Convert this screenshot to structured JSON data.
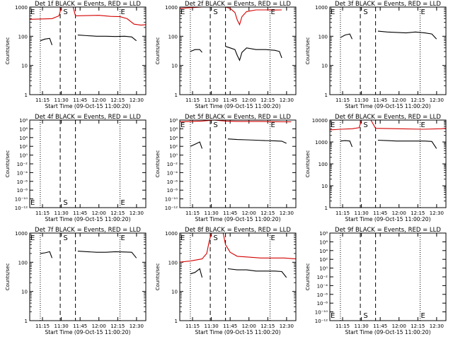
{
  "figure": {
    "background": "#ffffff",
    "foreground": "#000000",
    "events_color": "#000000",
    "lld_color": "#d40000",
    "line_styles": {
      "s_e_markers": "dotted",
      "gap_markers": "dashed"
    }
  },
  "chart_data": [
    {
      "type": "line",
      "title": "Det 1f BLACK = Events, RED = LLD",
      "xlabel": "Start Time (09-Oct-15 11:00:20)",
      "ylabel": "Counts/sec",
      "ylog": true,
      "ylim": [
        1,
        1000
      ],
      "ytick_labels": [
        "1",
        "10",
        "100",
        "1000"
      ],
      "xlim": [
        1,
        100
      ],
      "xtick_labels": [
        "11:15",
        "11:30",
        "11:45",
        "12:00",
        "12:15",
        "12:30"
      ],
      "markers": {
        "S": 32,
        "E": 78,
        "dotted_x": [
          10,
          78
        ],
        "dashed_x": [
          27,
          40
        ]
      },
      "series": [
        {
          "name": "Events",
          "color": "#000000",
          "segments": [
            {
              "x": [
                10,
                14,
                18,
                20
              ],
              "y": [
                70,
                80,
                85,
                50
              ]
            },
            {
              "x": [
                42,
                50,
                58,
                66,
                74,
                82,
                88,
                92
              ],
              "y": [
                110,
                105,
                100,
                100,
                98,
                100,
                95,
                70
              ]
            }
          ]
        },
        {
          "name": "LLD",
          "color": "#d40000",
          "segments": [
            {
              "x": [
                0,
                10,
                20,
                26,
                28,
                38,
                40,
                60,
                70,
                78,
                84,
                90,
                96,
                100
              ],
              "y": [
                380,
                390,
                400,
                500,
                1000,
                1000,
                500,
                520,
                480,
                470,
                400,
                260,
                240,
                250
              ]
            }
          ]
        }
      ]
    },
    {
      "type": "line",
      "title": "Det 2f BLACK = Events, RED = LLD",
      "xlabel": "Start Time (09-Oct-15 11:00:20)",
      "ylabel": "Counts/sec",
      "ylog": true,
      "ylim": [
        1,
        1000
      ],
      "ytick_labels": [
        "1",
        "10",
        "100",
        "1000"
      ],
      "xlim": [
        1,
        100
      ],
      "xtick_labels": [
        "11:15",
        "11:30",
        "11:45",
        "12:00",
        "12:15",
        "12:30"
      ],
      "markers": {
        "S": 32,
        "E": 78,
        "dotted_x": [
          10,
          78
        ],
        "dashed_x": [
          27,
          40
        ]
      },
      "series": [
        {
          "name": "Events",
          "color": "#000000",
          "segments": [
            {
              "x": [
                10,
                14,
                18,
                20
              ],
              "y": [
                30,
                35,
                35,
                28
              ]
            },
            {
              "x": [
                40,
                44,
                48,
                50,
                52,
                54,
                58,
                66,
                74,
                82,
                86,
                88
              ],
              "y": [
                45,
                40,
                35,
                22,
                15,
                28,
                40,
                35,
                35,
                33,
                30,
                18
              ]
            }
          ]
        },
        {
          "name": "LLD",
          "color": "#d40000",
          "segments": [
            {
              "x": [
                0,
                10,
                20,
                26,
                28,
                36,
                40,
                44,
                48,
                50,
                52,
                54,
                58,
                66,
                74,
                82,
                88
              ],
              "y": [
                900,
                950,
                1000,
                1000,
                1000,
                1000,
                1000,
                900,
                650,
                360,
                250,
                470,
                700,
                800,
                800,
                790,
                800
              ]
            }
          ]
        }
      ]
    },
    {
      "type": "line",
      "title": "Det 3f BLACK = Events, RED = LLD",
      "xlabel": "Start Time (09-Oct-15 11:00:20)",
      "ylabel": "Counts/sec",
      "ylog": true,
      "ylim": [
        1,
        1000
      ],
      "ytick_labels": [
        "1",
        "10",
        "100",
        "1000"
      ],
      "xlim": [
        1,
        100
      ],
      "xtick_labels": [
        "11:15",
        "11:30",
        "11:45",
        "12:00",
        "12:15",
        "12:30"
      ],
      "markers": {
        "S": 32,
        "E": 78,
        "dotted_x": [
          10,
          78
        ],
        "dashed_x": [
          27,
          40
        ]
      },
      "series": [
        {
          "name": "Events",
          "color": "#000000",
          "segments": [
            {
              "x": [
                10,
                14,
                18,
                20
              ],
              "y": [
                90,
                110,
                120,
                80
              ]
            },
            {
              "x": [
                42,
                50,
                58,
                66,
                74,
                82,
                88,
                92
              ],
              "y": [
                150,
                140,
                135,
                130,
                140,
                130,
                120,
                80
              ]
            }
          ]
        }
      ]
    },
    {
      "type": "line",
      "title": "Det 4f BLACK = Events, RED = LLD",
      "xlabel": "Start Time (09-Oct-15 11:00:20)",
      "ylabel": "Counts/sec",
      "ylog": true,
      "ylim": [
        1e-12,
        100000000.0
      ],
      "ytick_labels": [
        "10⁻¹²",
        "10⁻¹⁰",
        "10⁻⁸",
        "10⁻⁶",
        "10⁻⁴",
        "10⁻²",
        "10⁰",
        "10²",
        "10⁴",
        "10⁶",
        "10⁸"
      ],
      "xlim": [
        1,
        100
      ],
      "xtick_labels": [
        "11:15",
        "11:30",
        "11:45",
        "12:00",
        "12:15",
        "12:30"
      ],
      "markers": {
        "S": 32,
        "E": 78,
        "dotted_x": [
          10,
          78
        ],
        "dashed_x": [
          27,
          40
        ]
      },
      "series": []
    },
    {
      "type": "line",
      "title": "Det 5f BLACK = Events, RED = LLD",
      "xlabel": "Start Time (09-Oct-15 11:00:20)",
      "ylabel": "Counts/sec",
      "ylog": true,
      "ylim": [
        1e-12,
        100000000.0
      ],
      "ytick_labels": [
        "10⁻¹²",
        "10⁻¹⁰",
        "10⁻⁸",
        "10⁻⁶",
        "10⁻⁴",
        "10⁻²",
        "10⁰",
        "10²",
        "10⁴",
        "10⁶",
        "10⁸"
      ],
      "xlim": [
        1,
        100
      ],
      "xtick_labels": [
        "11:15",
        "11:30",
        "11:45",
        "12:00",
        "12:15",
        "12:30"
      ],
      "markers": {
        "S": 32,
        "E": 78,
        "dotted_x": [
          10,
          78
        ],
        "dashed_x": [
          27,
          40
        ]
      },
      "series": [
        {
          "name": "Events",
          "color": "#000000",
          "segments": [
            {
              "x": [
                10,
                14,
                18,
                20
              ],
              "y": [
                100,
                300,
                1000,
                30
              ]
            },
            {
              "x": [
                42,
                50,
                58,
                66,
                74,
                82,
                88,
                92
              ],
              "y": [
                5000,
                3500,
                3000,
                2500,
                2000,
                1800,
                1500,
                500
              ]
            }
          ]
        },
        {
          "name": "LLD",
          "color": "#d40000",
          "segments": [
            {
              "x": [
                0,
                10,
                20,
                30,
                40,
                50,
                60,
                70,
                80,
                90,
                96
              ],
              "y": [
                40000000,
                50000000,
                60000000,
                100000000,
                60000000,
                50000000,
                50000000,
                50000000,
                45000000,
                40000000,
                40000000
              ]
            }
          ]
        }
      ]
    },
    {
      "type": "line",
      "title": "Det 6f BLACK = Events, RED = LLD",
      "xlabel": "Start Time (09-Oct-15 11:00:20)",
      "ylabel": "Counts/sec",
      "ylog": true,
      "ylim": [
        1,
        10000
      ],
      "ytick_labels": [
        "1",
        "10",
        "100",
        "1000",
        "10000"
      ],
      "xlim": [
        1,
        100
      ],
      "xtick_labels": [
        "11:15",
        "11:30",
        "11:45",
        "12:00",
        "12:15",
        "12:30"
      ],
      "markers": {
        "S": 32,
        "E": 78,
        "dotted_x": [
          10,
          78
        ],
        "dashed_x": [
          27,
          40
        ]
      },
      "series": [
        {
          "name": "Events",
          "color": "#000000",
          "segments": [
            {
              "x": [
                10,
                14,
                18,
                20
              ],
              "y": [
                1100,
                1150,
                1100,
                600
              ]
            },
            {
              "x": [
                42,
                50,
                58,
                66,
                74,
                82,
                88,
                92
              ],
              "y": [
                1200,
                1150,
                1100,
                1100,
                1100,
                1100,
                1050,
                500
              ]
            }
          ]
        },
        {
          "name": "LLD",
          "color": "#d40000",
          "segments": [
            {
              "x": [
                0,
                10,
                20,
                26,
                28,
                36,
                40,
                60,
                80,
                96,
                100
              ],
              "y": [
                3500,
                3800,
                4000,
                4500,
                10000,
                10000,
                4200,
                4000,
                3800,
                4000,
                4200
              ]
            }
          ]
        }
      ]
    },
    {
      "type": "line",
      "title": "Det 7f BLACK = Events, RED = LLD",
      "xlabel": "Start Time (09-Oct-15 11:00:20)",
      "ylabel": "Counts/sec",
      "ylog": true,
      "ylim": [
        1,
        1000
      ],
      "ytick_labels": [
        "1",
        "10",
        "100",
        "1000"
      ],
      "xlim": [
        1,
        100
      ],
      "xtick_labels": [
        "11:15",
        "11:30",
        "11:45",
        "12:00",
        "12:15",
        "12:30"
      ],
      "markers": {
        "S": 32,
        "E": 78,
        "dotted_x": [
          10,
          78
        ],
        "dashed_x": [
          27,
          40
        ]
      },
      "series": [
        {
          "name": "Events",
          "color": "#000000",
          "segments": [
            {
              "x": [
                10,
                14,
                18,
                20
              ],
              "y": [
                200,
                210,
                230,
                140
              ]
            },
            {
              "x": [
                42,
                50,
                58,
                66,
                74,
                82,
                88,
                92
              ],
              "y": [
                240,
                230,
                220,
                220,
                230,
                225,
                220,
                140
              ]
            }
          ]
        }
      ]
    },
    {
      "type": "line",
      "title": "Det 8f BLACK = Events, RED = LLD",
      "xlabel": "Start Time (09-Oct-15 11:00:20)",
      "ylabel": "Counts/sec",
      "ylog": true,
      "ylim": [
        1,
        1000
      ],
      "ytick_labels": [
        "1",
        "10",
        "100",
        "1000"
      ],
      "xlim": [
        1,
        100
      ],
      "xtick_labels": [
        "11:15",
        "11:30",
        "11:45",
        "12:00",
        "12:15",
        "12:30"
      ],
      "markers": {
        "S": 32,
        "E": 78,
        "dotted_x": [
          10,
          78
        ],
        "dashed_x": [
          27,
          40
        ]
      },
      "series": [
        {
          "name": "Events",
          "color": "#000000",
          "segments": [
            {
              "x": [
                10,
                14,
                18,
                20
              ],
              "y": [
                40,
                45,
                60,
                30
              ]
            },
            {
              "x": [
                42,
                50,
                58,
                66,
                74,
                82,
                88,
                92
              ],
              "y": [
                60,
                55,
                55,
                50,
                50,
                50,
                48,
                30
              ]
            }
          ]
        },
        {
          "name": "LLD",
          "color": "#d40000",
          "segments": [
            {
              "x": [
                0,
                10,
                20,
                24,
                26,
                28,
                38,
                40,
                44,
                50,
                60,
                70,
                80,
                90,
                100
              ],
              "y": [
                100,
                110,
                130,
                200,
                500,
                1000,
                1000,
                400,
                220,
                160,
                150,
                140,
                140,
                140,
                130
              ]
            }
          ]
        }
      ]
    },
    {
      "type": "line",
      "title": "Det 9f BLACK = Events, RED = LLD",
      "xlabel": "Start Time (09-Oct-15 11:00:20)",
      "ylabel": "Counts/sec",
      "ylog": true,
      "ylim": [
        1e-12,
        100000000.0
      ],
      "ytick_labels": [
        "10⁻¹²",
        "10⁻¹⁰",
        "10⁻⁸",
        "10⁻⁶",
        "10⁻⁴",
        "10⁻²",
        "10⁰",
        "10²",
        "10⁴",
        "10⁶",
        "10⁸"
      ],
      "xlim": [
        1,
        100
      ],
      "xtick_labels": [
        "11:15",
        "11:30",
        "11:45",
        "12:00",
        "12:15",
        "12:30"
      ],
      "markers": {
        "S": 32,
        "E": 78,
        "dotted_x": [
          10,
          78
        ],
        "dashed_x": [
          27,
          40
        ]
      },
      "series": []
    }
  ]
}
